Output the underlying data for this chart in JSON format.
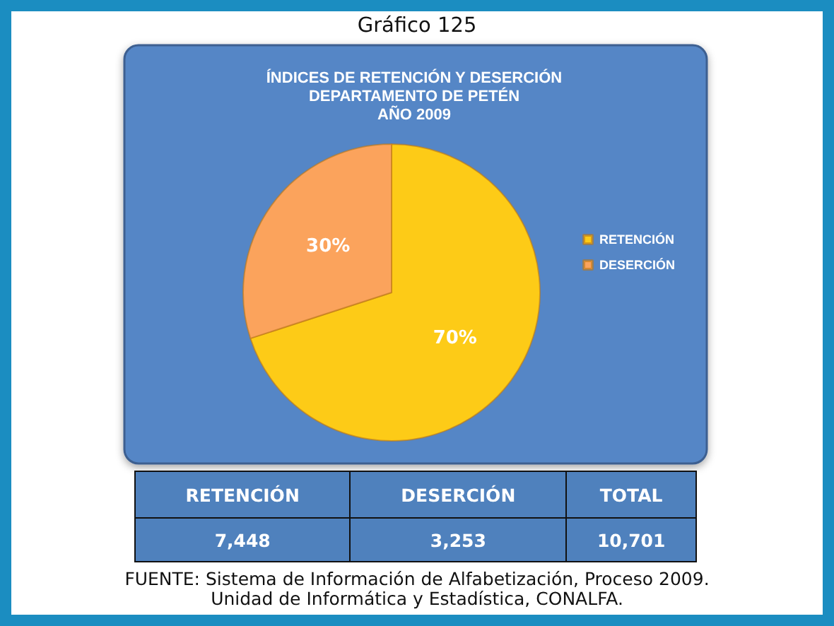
{
  "chart_data": {
    "type": "pie",
    "title": "Gráfico 125",
    "subtitle": "ÍNDICES DE RETENCIÓN Y DESERCIÓN\nDEPARTAMENTO DE PETÉN\nAÑO 2009",
    "categories": [
      "RETENCIÓN",
      "DESERCIÓN"
    ],
    "values": [
      70,
      30
    ],
    "colors": [
      "#fdcb17",
      "#fba35c"
    ],
    "value_labels": [
      "70%",
      "30%"
    ],
    "legend": "right",
    "annotations": [
      "TOTAL",
      "7,448",
      "3,253",
      "10,701",
      "FUENTE: Sistema de Información de Alfabetización, Proceso 2009.",
      "Unidad de Informática y Estadística, CONALFA."
    ]
  }
}
